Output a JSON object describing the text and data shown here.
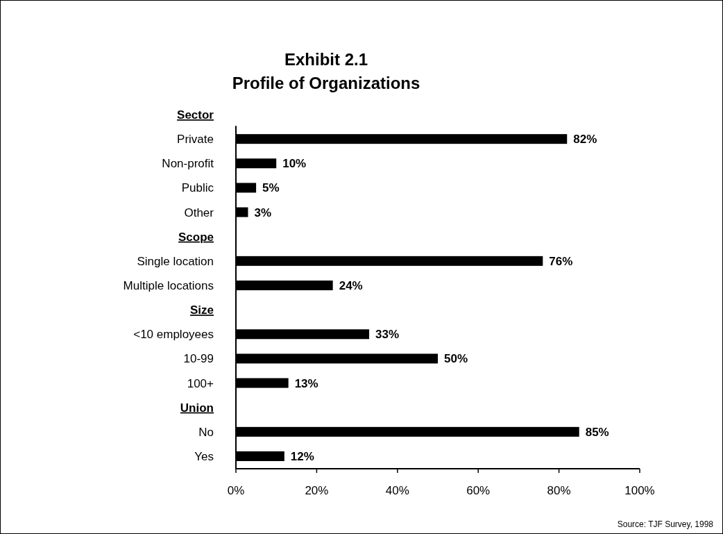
{
  "chart_data": {
    "type": "bar",
    "orientation": "horizontal",
    "title": "Exhibit 2.1",
    "subtitle": "Profile of Organizations",
    "categories": [
      "Sector",
      "Private",
      "Non-profit",
      "Public",
      "Other",
      "Scope",
      "Single location",
      "Multiple locations",
      "Size",
      "<10 employees",
      "10-99",
      "100+",
      "Union",
      "No",
      "Yes"
    ],
    "values": [
      null,
      82,
      10,
      5,
      3,
      null,
      76,
      24,
      null,
      33,
      50,
      13,
      null,
      85,
      12
    ],
    "value_labels": [
      null,
      "82%",
      "10%",
      "5%",
      "3%",
      null,
      "76%",
      "24%",
      null,
      "33%",
      "50%",
      "13%",
      null,
      "85%",
      "12%"
    ],
    "color": "#000000",
    "xlim": [
      0,
      100
    ],
    "xticks": [
      {
        "value": 0,
        "label": "0%"
      },
      {
        "value": 20,
        "label": "20%"
      },
      {
        "value": 40,
        "label": "40%"
      },
      {
        "value": 60,
        "label": "60%"
      },
      {
        "value": 80,
        "label": "80%"
      },
      {
        "value": 100,
        "label": "100%"
      }
    ],
    "grid": false,
    "annotations": [
      "Source: TJF Survey, 1998"
    ]
  }
}
